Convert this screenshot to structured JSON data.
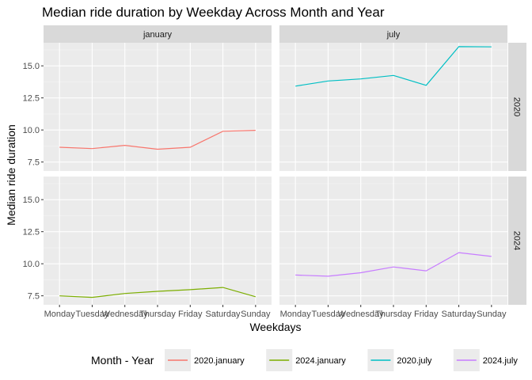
{
  "chart_data": {
    "type": "line",
    "title": "Median ride duration by Weekday Across Month and Year",
    "xlabel": "Weekdays",
    "ylabel": "Median ride duration",
    "categories": [
      "Monday",
      "Tuesday",
      "Wednesday",
      "Thursday",
      "Friday",
      "Saturday",
      "Sunday"
    ],
    "ylim": [
      6.8,
      16.8
    ],
    "yticks": [
      "7.5",
      "10.0",
      "12.5",
      "15.0"
    ],
    "ytick_values": [
      7.5,
      10.0,
      12.5,
      15.0
    ],
    "grid": true,
    "facet_columns": [
      "january",
      "july"
    ],
    "facet_rows": [
      "2020",
      "2024"
    ],
    "legend": {
      "title": "Month - Year",
      "placement": "bottom",
      "entries": [
        "2020.january",
        "2024.january",
        "2020.july",
        "2024.july"
      ]
    },
    "series": [
      {
        "name": "2020.january",
        "facet_col": "january",
        "facet_row": "2020",
        "color": "#F8766D",
        "values": [
          8.65,
          8.55,
          8.8,
          8.5,
          8.65,
          9.9,
          9.97
        ]
      },
      {
        "name": "2024.january",
        "facet_col": "january",
        "facet_row": "2024",
        "color": "#7CAE00",
        "values": [
          7.5,
          7.38,
          7.68,
          7.85,
          7.98,
          8.15,
          7.43
        ]
      },
      {
        "name": "2020.july",
        "facet_col": "july",
        "facet_row": "2020",
        "color": "#00BFC4",
        "values": [
          13.42,
          13.82,
          13.98,
          14.25,
          13.48,
          16.5,
          16.48
        ]
      },
      {
        "name": "2024.july",
        "facet_col": "july",
        "facet_row": "2024",
        "color": "#C77CFF",
        "values": [
          9.12,
          9.03,
          9.3,
          9.75,
          9.45,
          10.87,
          10.57
        ]
      }
    ]
  }
}
